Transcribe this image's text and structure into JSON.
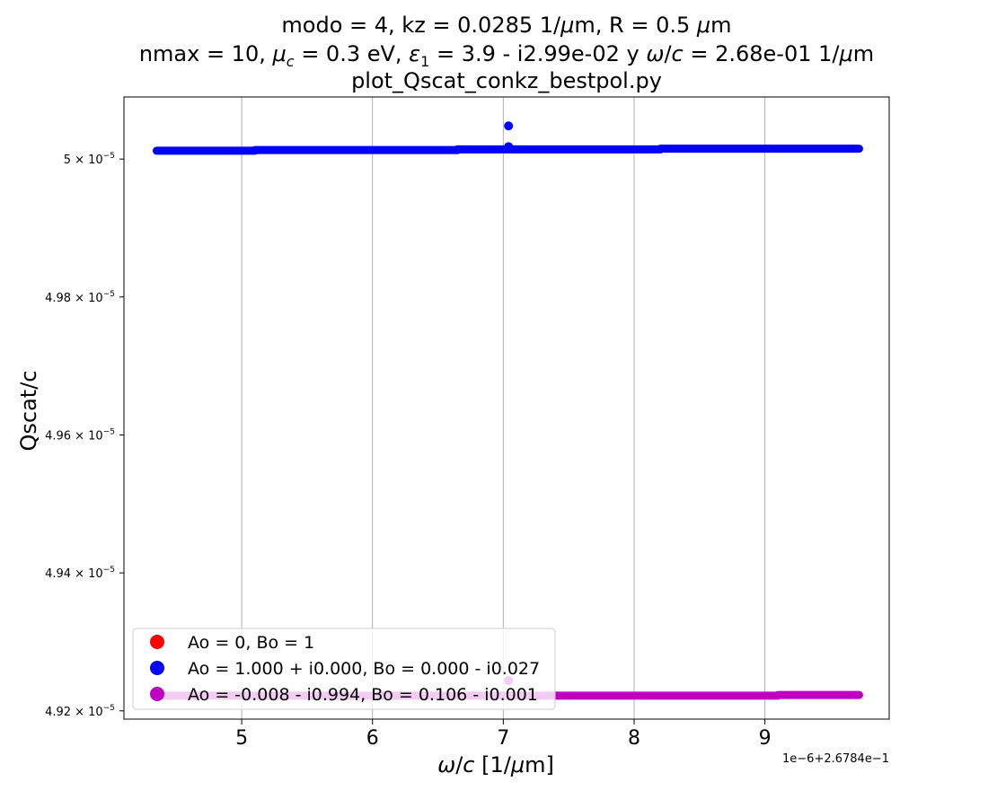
{
  "chart_data": {
    "type": "scatter",
    "title_lines": [
      "modo = 4, kz = 0.0285 1/μm, R = 0.5 μm",
      "nmax = 10, μ_c = 0.3 eV, ε₁ = 3.9 - i2.99e-02 y ω/c = 2.68e-01 1/μm",
      "plot_Qscat_conkz_bestpol.py"
    ],
    "xlabel": "ω/c [1/μm]",
    "ylabel": "Qscat/c",
    "x_offset_text": "1e−6+2.6784e−1",
    "xlim": [
      4.1,
      9.95
    ],
    "ylim": [
      4.9188e-05,
      5.009e-05
    ],
    "x_ticks": [
      5,
      6,
      7,
      8,
      9
    ],
    "x_tick_labels": [
      "5",
      "6",
      "7",
      "8",
      "9"
    ],
    "y_ticks": [
      4.92e-05,
      4.94e-05,
      4.96e-05,
      4.98e-05,
      5e-05
    ],
    "y_tick_labels": [
      {
        "mant": "4.92",
        "exp": "−5"
      },
      {
        "mant": "4.94",
        "exp": "−5"
      },
      {
        "mant": "4.96",
        "exp": "−5"
      },
      {
        "mant": "4.98",
        "exp": "−5"
      },
      {
        "mant": "5",
        "exp": "−5"
      }
    ],
    "grid": "vertical",
    "legend_position": "lower-left",
    "series": [
      {
        "name": "Ao = 0, Bo = 1",
        "color": "#ff0000",
        "segments": []
      },
      {
        "name": "Ao = 1.000 + i0.000, Bo = 0.000 - i0.027",
        "color": "#0000ff",
        "segments": [
          {
            "x": [
              4.35,
              5.1
            ],
            "y": 5.0012e-05
          },
          {
            "x": [
              5.1,
              6.65
            ],
            "y": 5.0013e-05
          },
          {
            "x": [
              6.65,
              8.2
            ],
            "y": 5.0014e-05
          },
          {
            "x": [
              8.2,
              9.72
            ],
            "y": 5.0015e-05
          }
        ],
        "points": [
          {
            "x": 7.04,
            "y": 5.0048e-05
          },
          {
            "x": 7.04,
            "y": 5.0018e-05
          }
        ]
      },
      {
        "name": "Ao = -0.008 - i0.994, Bo = 0.106 - i0.001",
        "color": "#c000c0",
        "segments": [
          {
            "x": [
              4.35,
              7.5
            ],
            "y": 4.9222e-05
          },
          {
            "x": [
              7.5,
              9.1
            ],
            "y": 4.9222e-05
          },
          {
            "x": [
              9.1,
              9.72
            ],
            "y": 4.9223e-05
          }
        ],
        "points": [
          {
            "x": 7.04,
            "y": 4.9244e-05
          }
        ]
      }
    ]
  }
}
